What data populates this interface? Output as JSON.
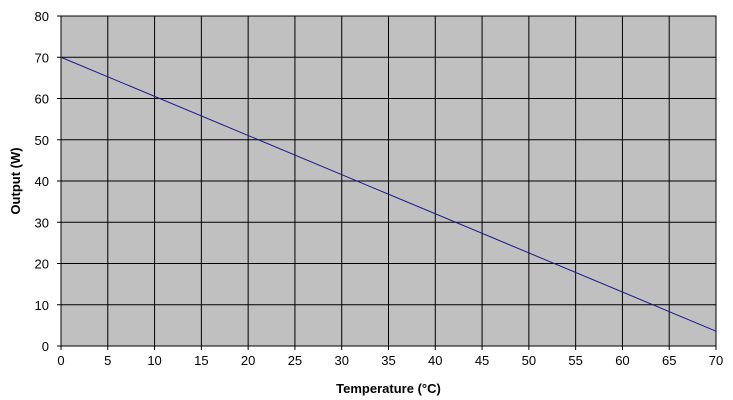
{
  "chart_data": {
    "type": "line",
    "xlabel": "Temperature (°C)",
    "ylabel": "Output (W)",
    "xlim": [
      0,
      70
    ],
    "ylim": [
      0,
      80
    ],
    "x_ticks": [
      "0",
      "5",
      "10",
      "15",
      "20",
      "25",
      "30",
      "35",
      "40",
      "45",
      "50",
      "55",
      "60",
      "65",
      "70"
    ],
    "y_ticks": [
      "0",
      "10",
      "20",
      "30",
      "40",
      "50",
      "60",
      "70",
      "80"
    ],
    "grid": true,
    "legend": "none",
    "series": [
      {
        "x": [
          0,
          70
        ],
        "y": [
          70,
          3.6
        ]
      }
    ],
    "colors": {
      "plot_background": "#c0c0c0",
      "grid": "#000000",
      "line": "#1a1a8a"
    }
  }
}
